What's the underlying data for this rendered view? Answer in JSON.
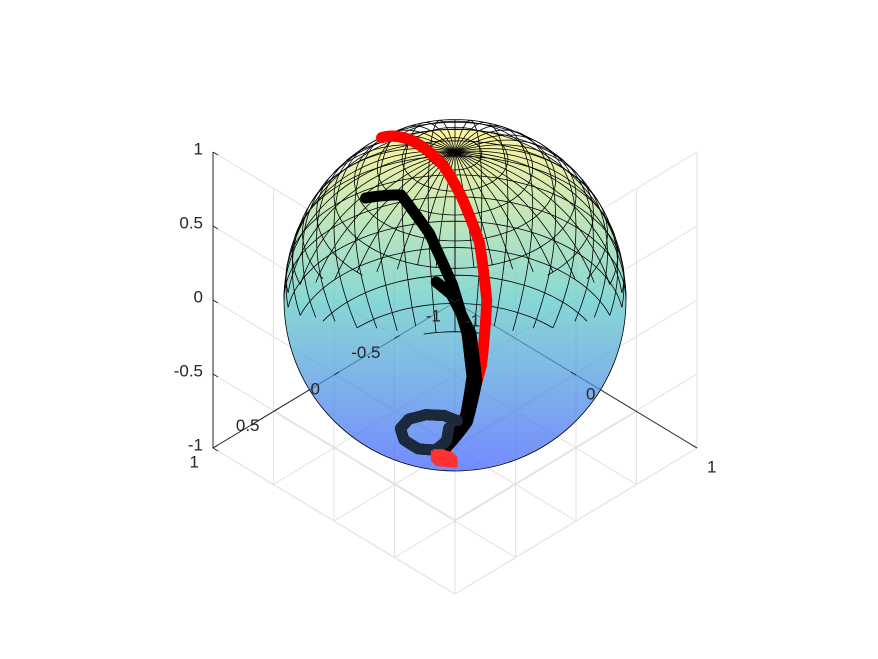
{
  "chart_data": {
    "type": "scatter",
    "title": "",
    "xlabel": "",
    "ylabel": "",
    "zlabel": "",
    "grid": true,
    "legend": "none",
    "projection": "3d",
    "axes": {
      "x": {
        "lim": [
          -1,
          1
        ],
        "ticks": [
          -1,
          0,
          1
        ],
        "tick_labels": [
          "-1",
          "0",
          "1"
        ]
      },
      "y": {
        "lim": [
          -1,
          1
        ],
        "ticks": [
          -1,
          -0.5,
          0,
          0.5,
          1
        ],
        "tick_labels": [
          "-1",
          "-0.5",
          "0",
          "0.5",
          "1"
        ]
      },
      "z": {
        "lim": [
          -1,
          1
        ],
        "ticks": [
          -1,
          -0.5,
          0,
          0.5,
          1
        ],
        "tick_labels": [
          "-1",
          "-0.5",
          "0",
          "0.5",
          "1"
        ]
      }
    },
    "surface": {
      "shape": "unit sphere",
      "meridians": 40,
      "parallels": 20,
      "face_alpha": 0.3,
      "edge_color": "#000000",
      "colormap": [
        "#3f5fff",
        "#59c8c4",
        "#fff37a"
      ]
    },
    "series": [
      {
        "color": "#ff0000",
        "marker": "filled circle",
        "x": [
          -0.05,
          -0.15,
          -0.28,
          -0.45,
          -0.62,
          -0.76,
          -0.82,
          -0.84,
          -0.82,
          -0.77,
          -0.7
        ],
        "y": [
          0.05,
          -0.25,
          -0.5,
          -0.72,
          -0.84,
          -0.82,
          -0.72,
          -0.58,
          -0.42,
          -0.26,
          -0.1
        ],
        "z": [
          -0.99,
          -0.95,
          -0.82,
          -0.58,
          -0.3,
          0.0,
          0.25,
          0.42,
          0.55,
          0.63,
          0.68
        ]
      },
      {
        "color": "#000000",
        "marker": "filled circle",
        "x": [
          -0.02,
          -0.12,
          -0.28,
          -0.45,
          -0.62,
          -0.78,
          -0.9,
          -0.97
        ],
        "y": [
          0.08,
          -0.2,
          -0.42,
          -0.55,
          -0.6,
          -0.57,
          -0.45,
          -0.22
        ],
        "z": [
          -0.99,
          -0.96,
          -0.86,
          -0.72,
          -0.5,
          -0.22,
          0.05,
          0.1
        ]
      },
      {
        "color": "#000000",
        "marker": "filled circle",
        "x": [
          -0.02,
          -0.1,
          -0.24,
          -0.42,
          -0.58,
          -0.65
        ],
        "y": [
          0.1,
          -0.2,
          -0.42,
          -0.55,
          -0.55,
          -0.5
        ],
        "z": [
          -0.99,
          -0.96,
          -0.87,
          -0.7,
          -0.52,
          -0.45
        ]
      },
      {
        "color": "#1c2a3c",
        "marker": "filled circle",
        "x": [
          -0.15,
          -0.23,
          -0.3,
          -0.33,
          -0.3,
          -0.22,
          -0.12,
          -0.06,
          -0.08,
          -0.15
        ],
        "y": [
          -0.17,
          -0.14,
          -0.06,
          0.05,
          0.15,
          0.2,
          0.18,
          0.1,
          -0.01,
          -0.1
        ],
        "z": [
          -0.97,
          -0.96,
          -0.95,
          -0.94,
          -0.94,
          -0.95,
          -0.97,
          -0.99,
          -0.99,
          -0.98
        ]
      },
      {
        "color": "#ff3333",
        "marker": "square",
        "x": [
          -0.02,
          0.04,
          0.1,
          0.04,
          -0.02
        ],
        "y": [
          0.12,
          0.1,
          0.12,
          0.16,
          0.14
        ],
        "z": [
          -0.99,
          -0.99,
          -0.99,
          -0.98,
          -0.99
        ]
      }
    ]
  }
}
